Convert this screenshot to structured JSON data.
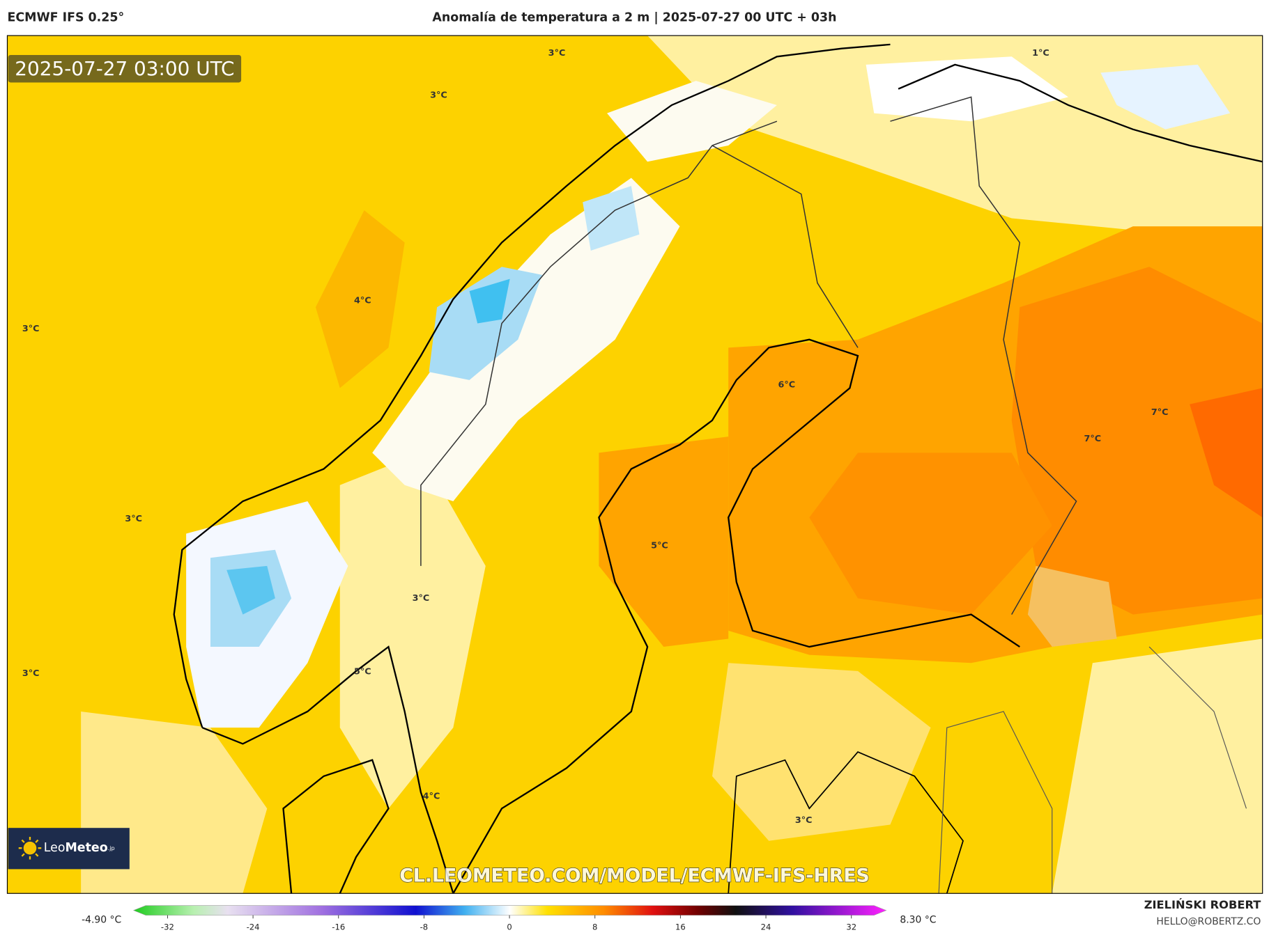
{
  "header": {
    "model": "ECMWF IFS 0.25°",
    "title": "Anomalía de temperatura a 2 m | 2025-07-27 00 UTC + 03h"
  },
  "map": {
    "timestamp": "2025-07-27 03:00 UTC",
    "labels": [
      "3°C",
      "3°C",
      "1°C",
      "4°C",
      "3°C",
      "6°C",
      "7°C",
      "7°C",
      "3°C",
      "5°C",
      "3°C",
      "3°C",
      "5°C",
      "4°C",
      "3°C"
    ],
    "logo": {
      "first": "Leo",
      "second": "Meteo",
      "suffix": ".jp"
    },
    "url": "CL.LEOMETEO.COM/MODEL/ECMWF-IFS-HRES"
  },
  "colorbar": {
    "min": "-4.90 °C",
    "max": "8.30 °C",
    "ticks": [
      -32,
      -24,
      -16,
      -8,
      0,
      8,
      16,
      24,
      32
    ]
  },
  "credits": {
    "author": "ZIELIŃSKI ROBERT",
    "contact": "HELLO@ROBERTZ.CO"
  }
}
